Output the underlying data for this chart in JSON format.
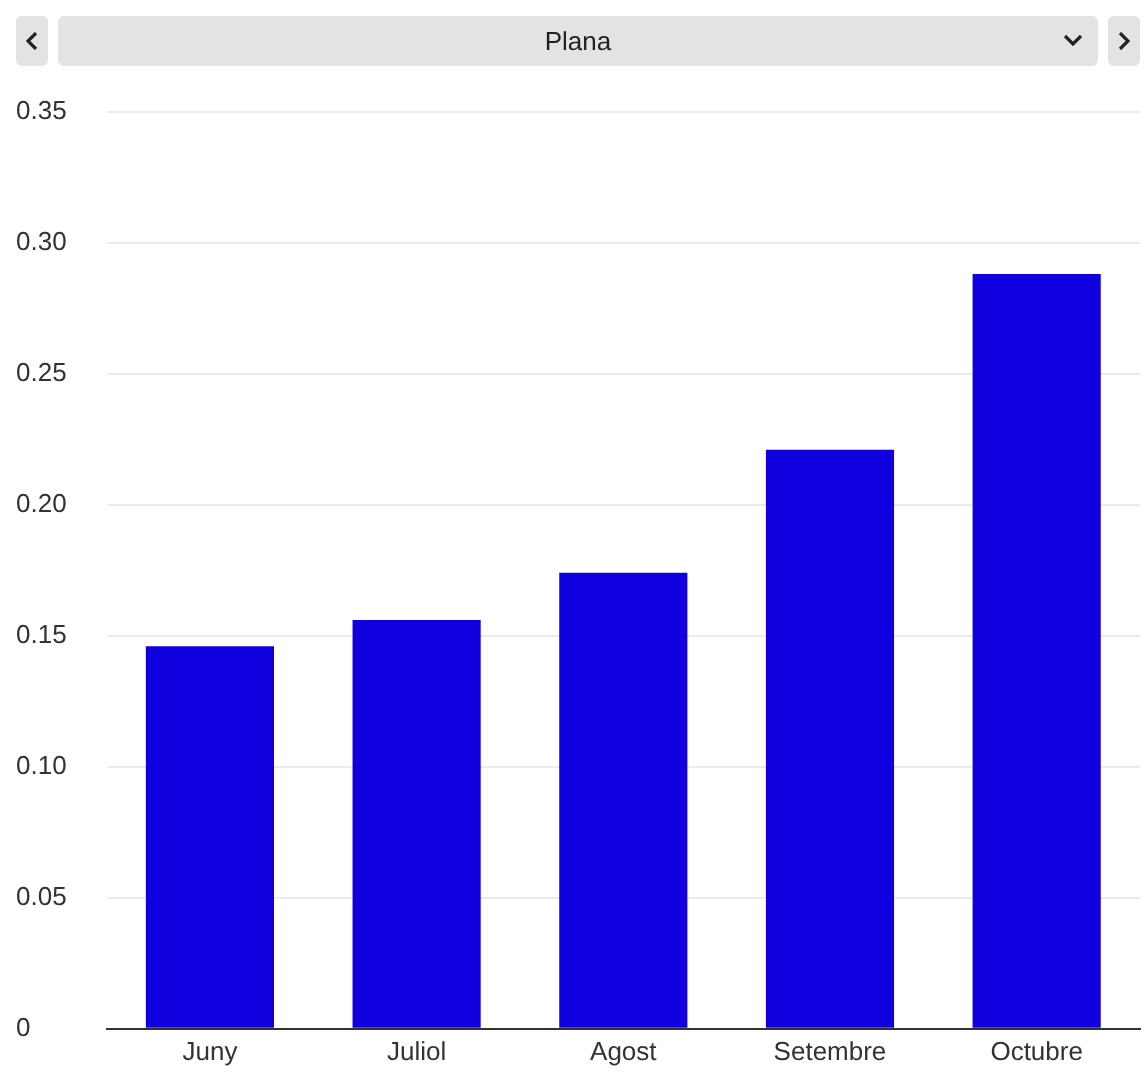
{
  "chart_data": {
    "type": "bar",
    "title": "Plana",
    "categories": [
      "Juny",
      "Juliol",
      "Agost",
      "Setembre",
      "Octubre"
    ],
    "values": [
      0.146,
      0.156,
      0.174,
      0.221,
      0.288
    ],
    "color": "#1000e0",
    "ylim": [
      0,
      0.35
    ],
    "yticks": [
      0,
      {
        "value": 0.05,
        "label": "0.05"
      },
      {
        "value": 0.1,
        "label": "0.10"
      },
      {
        "value": 0.15,
        "label": "0.15"
      },
      {
        "value": 0.2,
        "label": "0.20"
      },
      {
        "value": 0.25,
        "label": "0.25"
      },
      {
        "value": 0.3,
        "label": "0.30"
      },
      {
        "value": 0.35,
        "label": "0.35"
      }
    ],
    "grid": "y",
    "legend": false
  }
}
